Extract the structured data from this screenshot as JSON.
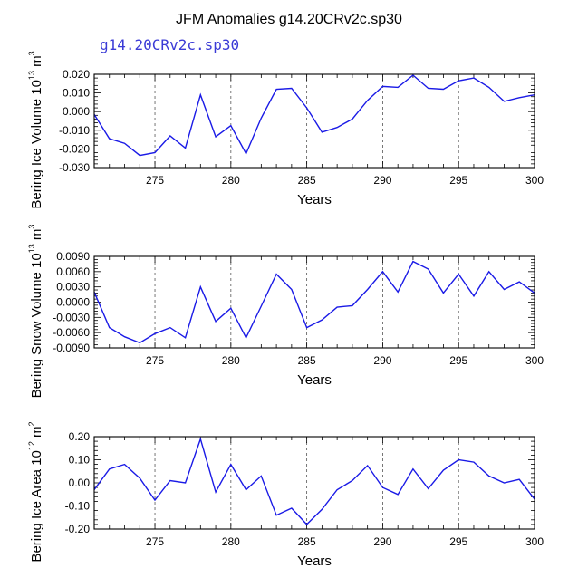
{
  "title": "JFM Anomalies g14.20CRv2c.sp30",
  "subtitle": "g14.20CRv2c.sp30",
  "chart_data": [
    {
      "type": "line",
      "ylabel_main": "Bering Ice Volume 10",
      "ylabel_exp": "13",
      "ylabel_unit": " m",
      "ylabel_unit_exp": "3",
      "xlabel": "Years",
      "xlim": [
        271,
        300
      ],
      "ylim": [
        -0.03,
        0.02
      ],
      "xticks": [
        275,
        280,
        285,
        290,
        295,
        300
      ],
      "xtick_labels": [
        "275",
        "280",
        "285",
        "290",
        "295",
        "300"
      ],
      "yticks": [
        -0.03,
        -0.02,
        -0.01,
        0.0,
        0.01,
        0.02
      ],
      "ytick_labels": [
        "-0.030",
        "-0.020",
        "-0.010",
        "0.000",
        "0.010",
        "0.020"
      ],
      "grid_x": true,
      "color": "#1a1ae6",
      "x": [
        271,
        272,
        273,
        274,
        275,
        276,
        277,
        278,
        279,
        280,
        281,
        282,
        283,
        284,
        285,
        286,
        287,
        288,
        289,
        290,
        291,
        292,
        293,
        294,
        295,
        296,
        297,
        298,
        299,
        300
      ],
      "y": [
        -0.0015,
        -0.0145,
        -0.017,
        -0.0235,
        -0.022,
        -0.013,
        -0.0195,
        0.009,
        -0.0135,
        -0.0075,
        -0.0225,
        -0.0035,
        0.012,
        0.0125,
        0.002,
        -0.011,
        -0.0085,
        -0.004,
        0.006,
        0.0135,
        0.013,
        0.0195,
        0.0125,
        0.012,
        0.0165,
        0.018,
        0.013,
        0.0055,
        0.0075,
        0.009
      ]
    },
    {
      "type": "line",
      "ylabel_main": "Bering Snow Volume 10",
      "ylabel_exp": "13",
      "ylabel_unit": " m",
      "ylabel_unit_exp": "3",
      "xlabel": "Years",
      "xlim": [
        271,
        300
      ],
      "ylim": [
        -0.009,
        0.009
      ],
      "xticks": [
        275,
        280,
        285,
        290,
        295,
        300
      ],
      "xtick_labels": [
        "275",
        "280",
        "285",
        "290",
        "295",
        "300"
      ],
      "yticks": [
        -0.009,
        -0.006,
        -0.003,
        0.0,
        0.003,
        0.006,
        0.009
      ],
      "ytick_labels": [
        "-0.0090",
        "-0.0060",
        "-0.0030",
        "0.0000",
        "0.0030",
        "0.0060",
        "0.0090"
      ],
      "grid_x": true,
      "color": "#1a1ae6",
      "x": [
        271,
        272,
        273,
        274,
        275,
        276,
        277,
        278,
        279,
        280,
        281,
        282,
        283,
        284,
        285,
        286,
        287,
        288,
        289,
        290,
        291,
        292,
        293,
        294,
        295,
        296,
        297,
        298,
        299,
        300
      ],
      "y": [
        0.002,
        -0.005,
        -0.0068,
        -0.008,
        -0.0062,
        -0.005,
        -0.007,
        0.003,
        -0.0038,
        -0.0012,
        -0.007,
        -0.0008,
        0.0055,
        0.0025,
        -0.005,
        -0.0035,
        -0.001,
        -0.0007,
        0.0025,
        0.006,
        0.002,
        0.008,
        0.0065,
        0.0018,
        0.0055,
        0.0012,
        0.006,
        0.0025,
        0.004,
        0.0018
      ]
    },
    {
      "type": "line",
      "ylabel_main": "Bering Ice Area 10",
      "ylabel_exp": "12",
      "ylabel_unit": " m",
      "ylabel_unit_exp": "2",
      "xlabel": "Years",
      "xlim": [
        271,
        300
      ],
      "ylim": [
        -0.2,
        0.2
      ],
      "xticks": [
        275,
        280,
        285,
        290,
        295,
        300
      ],
      "xtick_labels": [
        "275",
        "280",
        "285",
        "290",
        "295",
        "300"
      ],
      "yticks": [
        -0.2,
        -0.1,
        0.0,
        0.1,
        0.2
      ],
      "ytick_labels": [
        "-0.20",
        "-0.10",
        "0.00",
        "0.10",
        "0.20"
      ],
      "grid_x": true,
      "color": "#1a1ae6",
      "x": [
        271,
        272,
        273,
        274,
        275,
        276,
        277,
        278,
        279,
        280,
        281,
        282,
        283,
        284,
        285,
        286,
        287,
        288,
        289,
        290,
        291,
        292,
        293,
        294,
        295,
        296,
        297,
        298,
        299,
        300
      ],
      "y": [
        -0.03,
        0.06,
        0.08,
        0.02,
        -0.075,
        0.01,
        0.0,
        0.19,
        -0.04,
        0.08,
        -0.03,
        0.03,
        -0.14,
        -0.11,
        -0.18,
        -0.115,
        -0.03,
        0.01,
        0.075,
        -0.02,
        -0.05,
        0.06,
        -0.025,
        0.055,
        0.1,
        0.09,
        0.03,
        0.0,
        0.015,
        -0.07
      ]
    }
  ]
}
